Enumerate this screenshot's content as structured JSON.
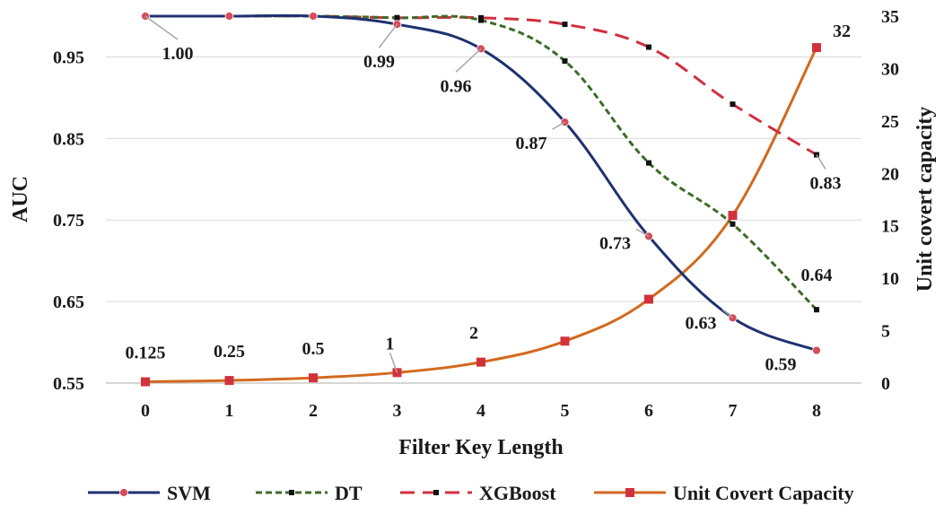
{
  "chart_data": {
    "type": "line",
    "xlabel": "Filter Key Length",
    "ylabel": "AUC",
    "y2label": "Unit covert capacity",
    "x": [
      0,
      1,
      2,
      3,
      4,
      5,
      6,
      7,
      8
    ],
    "xticks": [
      "0",
      "1",
      "2",
      "3",
      "4",
      "5",
      "6",
      "7",
      "8"
    ],
    "ylim": [
      0.55,
      1.0
    ],
    "yticks": [
      "0.55",
      "0.65",
      "0.75",
      "0.85",
      "0.95"
    ],
    "y2lim": [
      0,
      35
    ],
    "y2ticks": [
      "0",
      "5",
      "10",
      "15",
      "20",
      "25",
      "30",
      "35"
    ],
    "grid": "horizontal",
    "legend_position": "bottom",
    "series": [
      {
        "name": "SVM",
        "axis": "left",
        "color": "#1f3170",
        "style": "solid",
        "marker": "circle",
        "values": [
          1.0,
          1.0,
          1.0,
          0.99,
          0.96,
          0.87,
          0.73,
          0.63,
          0.59
        ],
        "labels": [
          "1.00",
          "",
          "",
          "0.99",
          "0.96",
          "0.87",
          "0.73",
          "0.63",
          "0.59"
        ]
      },
      {
        "name": "DT",
        "axis": "left",
        "color": "#3e6b2a",
        "style": "dotted",
        "marker": "square-small",
        "values": [
          1.0,
          1.0,
          1.0,
          0.998,
          0.995,
          0.945,
          0.82,
          0.745,
          0.64
        ],
        "labels": [
          "",
          "",
          "",
          "",
          "",
          "",
          "",
          "",
          "0.64"
        ]
      },
      {
        "name": "XGBoost",
        "axis": "left",
        "color": "#d03040",
        "style": "dashed",
        "marker": "square-small",
        "values": [
          1.0,
          1.0,
          1.0,
          0.998,
          0.998,
          0.99,
          0.962,
          0.892,
          0.83
        ],
        "labels": [
          "",
          "",
          "",
          "",
          "",
          "",
          "",
          "",
          "0.83"
        ]
      },
      {
        "name": "Unit Covert Capacity",
        "axis": "right",
        "color": "#d2691e",
        "style": "solid",
        "marker": "square",
        "values": [
          0.125,
          0.25,
          0.5,
          1,
          2,
          4,
          8,
          16,
          32
        ],
        "labels": [
          "0.125",
          "0.25",
          "0.5",
          "1",
          "2",
          "",
          "",
          "",
          "32"
        ]
      }
    ]
  }
}
